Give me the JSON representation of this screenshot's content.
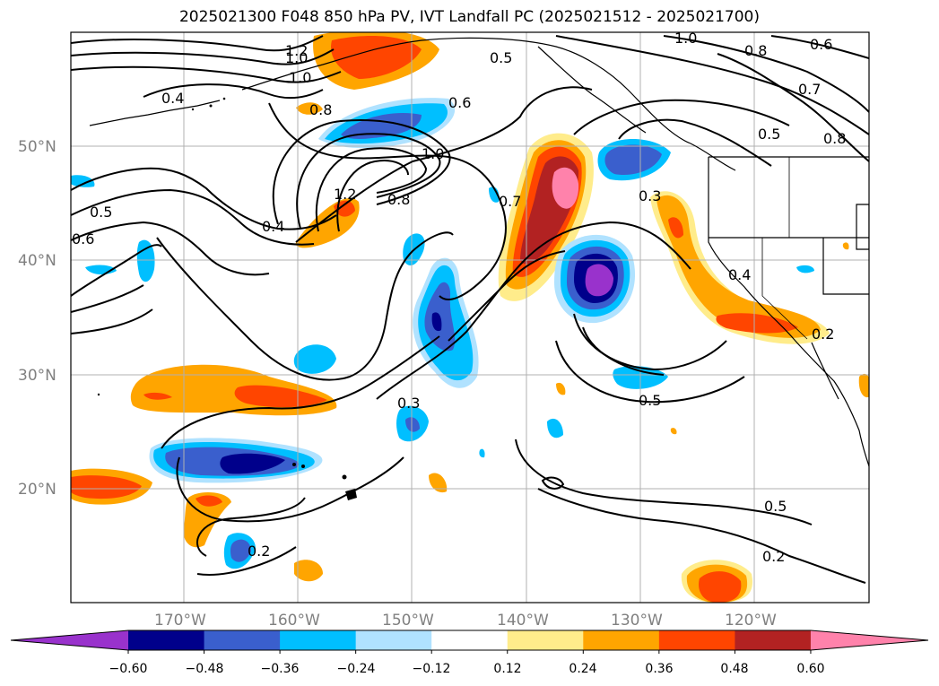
{
  "title": "2025021300 F048 850 hPa PV, IVT Landfall PC (2025021512 - 2025021700)",
  "map": {
    "lat_labels": [
      "50°N",
      "40°N",
      "30°N",
      "20°N"
    ],
    "lon_labels": [
      "170°W",
      "160°W",
      "150°W",
      "140°W",
      "130°W",
      "120°W"
    ],
    "contour_labels": [
      "1.0",
      "1.2",
      "1.0",
      "0.8",
      "0.4",
      "0.5",
      "0.6",
      "1.0",
      "0.8",
      "0.7",
      "0.6",
      "0.7",
      "0.8",
      "0.5",
      "0.8",
      "1.2",
      "0.4",
      "0.5",
      "0.6",
      "0.3",
      "0.4",
      "0.2",
      "0.3",
      "0.5",
      "0.5",
      "0.2",
      "0.2"
    ]
  },
  "colorbar": {
    "ticks": [
      "−0.60",
      "−0.48",
      "−0.36",
      "−0.24",
      "−0.12",
      "0.12",
      "0.24",
      "0.36",
      "0.48",
      "0.60"
    ],
    "colors": [
      "#9932cc",
      "#00008b",
      "#3a5fcd",
      "#00bfff",
      "#b0e2ff",
      "#ffffff",
      "#ffec8b",
      "#ffa500",
      "#ff4500",
      "#b22222",
      "#ff82ab"
    ]
  },
  "colors": {
    "grid": "#b0b0b0",
    "contour": "#000000",
    "label_text": "#808080"
  }
}
